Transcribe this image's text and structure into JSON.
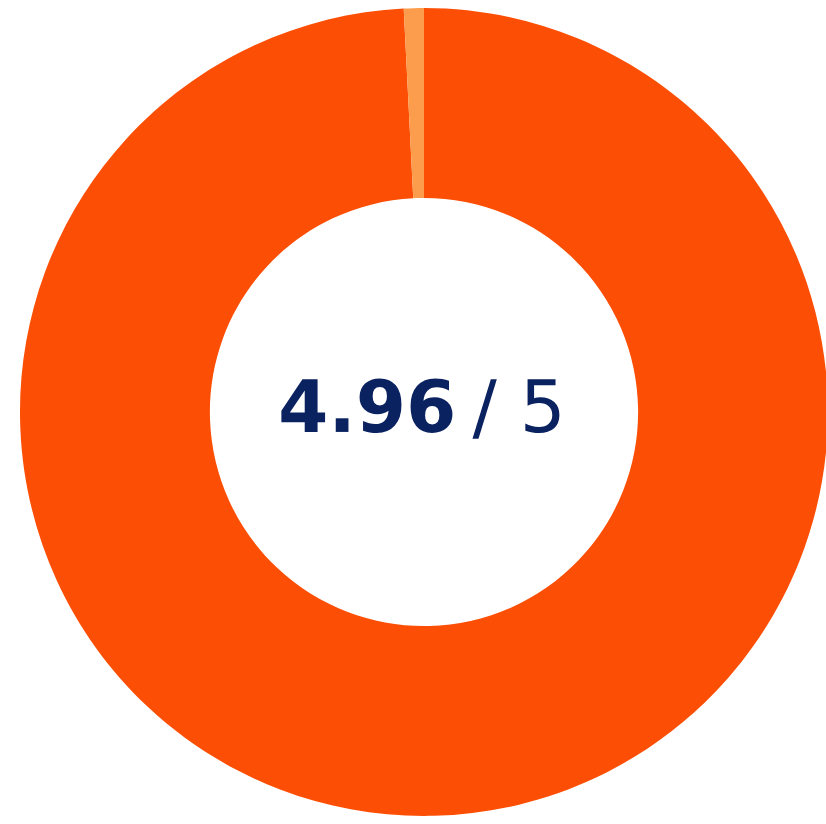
{
  "chart_data": {
    "type": "donut",
    "categories": [
      null,
      null
    ],
    "values": [
      99.2,
      0.8
    ],
    "colors": [
      "#fc4e04",
      "#fb9d4c"
    ],
    "annotations": [
      "4.96",
      "/ 5"
    ]
  }
}
